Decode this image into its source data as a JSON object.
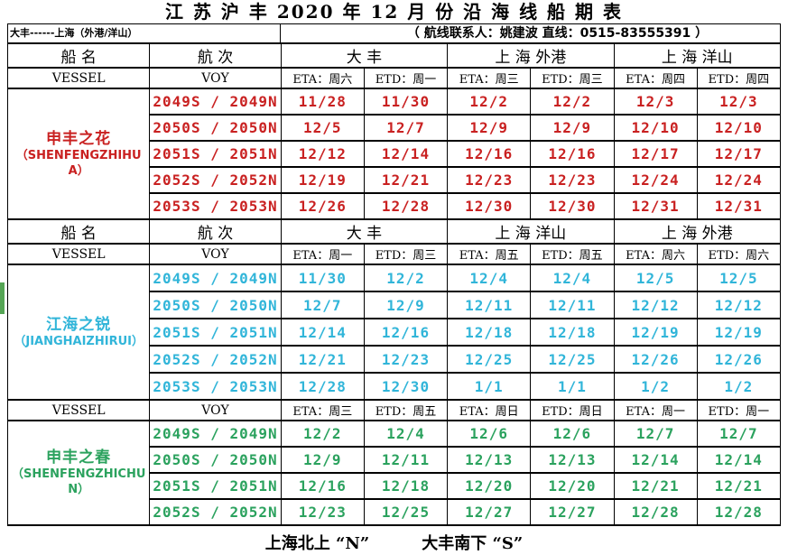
{
  "title": "江 苏 沪 丰 2020 年 12 月 份 沿 海 线 船 期 表",
  "subtitle": {
    "route": "大丰------上海（外港/洋山）",
    "contact": "（ 航线联系人：姚建波 直线：0515-83555391 ）"
  },
  "footer": {
    "north": "上海北上 “N”",
    "south": "大丰南下 “S”"
  },
  "colors": {
    "section1_red": "#c92121",
    "section2_cyan": "#31b5d9",
    "section3_green": "#2ba25e",
    "border_black": "#000000",
    "artifact_green": "#55a555"
  },
  "sections": [
    {
      "color": "#c92121",
      "cn_header": {
        "vessel": "船  名",
        "voy": "航  次",
        "ports": [
          "大  丰",
          "上 海 外港",
          "上 海 洋山"
        ]
      },
      "en_header": {
        "vessel": "VESSEL",
        "voy": "VOY",
        "cols": [
          "ETA：周六",
          "ETD：周一",
          "ETA：周三",
          "ETD：周三",
          "ETA：周四",
          "ETD：周四"
        ]
      },
      "vessel": {
        "cn": "申丰之花",
        "en": "（SHENFENGZHIHUA）"
      },
      "rows": [
        {
          "voy": "2049S / 2049N",
          "dates": [
            "11/28",
            "11/30",
            "12/2",
            "12/2",
            "12/3",
            "12/3"
          ]
        },
        {
          "voy": "2050S / 2050N",
          "dates": [
            "12/5",
            "12/7",
            "12/9",
            "12/9",
            "12/10",
            "12/10"
          ]
        },
        {
          "voy": "2051S / 2051N",
          "dates": [
            "12/12",
            "12/14",
            "12/16",
            "12/16",
            "12/17",
            "12/17"
          ]
        },
        {
          "voy": "2052S / 2052N",
          "dates": [
            "12/19",
            "12/21",
            "12/23",
            "12/23",
            "12/24",
            "12/24"
          ]
        },
        {
          "voy": "2053S / 2053N",
          "dates": [
            "12/26",
            "12/28",
            "12/30",
            "12/30",
            "12/31",
            "12/31"
          ]
        }
      ]
    },
    {
      "color": "#31b5d9",
      "cn_header": {
        "vessel": "船  名",
        "voy": "航  次",
        "ports": [
          "大  丰",
          "上 海 洋山",
          "上 海 外港"
        ]
      },
      "en_header": {
        "vessel": "VESSEL",
        "voy": "VOY",
        "cols": [
          "ETA：周一",
          "ETD：周三",
          "ETA：周五",
          "ETD：周五",
          "ETA：周六",
          "ETD：周六"
        ]
      },
      "vessel": {
        "cn": "江海之锐",
        "en": "（JIANGHAIZHIRUI）"
      },
      "rows": [
        {
          "voy": "2049S / 2049N",
          "dates": [
            "11/30",
            "12/2",
            "12/4",
            "12/4",
            "12/5",
            "12/5"
          ]
        },
        {
          "voy": "2050S / 2050N",
          "dates": [
            "12/7",
            "12/9",
            "12/11",
            "12/11",
            "12/12",
            "12/12"
          ]
        },
        {
          "voy": "2051S / 2051N",
          "dates": [
            "12/14",
            "12/16",
            "12/18",
            "12/18",
            "12/19",
            "12/19"
          ]
        },
        {
          "voy": "2052S / 2052N",
          "dates": [
            "12/21",
            "12/23",
            "12/25",
            "12/25",
            "12/26",
            "12/26"
          ]
        },
        {
          "voy": "2053S / 2053N",
          "dates": [
            "12/28",
            "12/30",
            "1/1",
            "1/1",
            "1/2",
            "1/2"
          ]
        }
      ]
    },
    {
      "color": "#2ba25e",
      "en_header": {
        "vessel": "VESSEL",
        "voy": "VOY",
        "cols": [
          "ETA：周三",
          "ETD：周五",
          "ETA：周日",
          "ETD：周日",
          "ETA：周一",
          "ETD：周一"
        ]
      },
      "vessel": {
        "cn": "申丰之春",
        "en": "（SHENFENGZHICHUN）"
      },
      "rows": [
        {
          "voy": "2049S / 2049N",
          "dates": [
            "12/2",
            "12/4",
            "12/6",
            "12/6",
            "12/7",
            "12/7"
          ]
        },
        {
          "voy": "2050S / 2050N",
          "dates": [
            "12/9",
            "12/11",
            "12/13",
            "12/13",
            "12/14",
            "12/14"
          ]
        },
        {
          "voy": "2051S / 2051N",
          "dates": [
            "12/16",
            "12/18",
            "12/20",
            "12/20",
            "12/21",
            "12/21"
          ]
        },
        {
          "voy": "2052S / 2052N",
          "dates": [
            "12/23",
            "12/25",
            "12/27",
            "12/27",
            "12/28",
            "12/28"
          ]
        }
      ]
    }
  ]
}
